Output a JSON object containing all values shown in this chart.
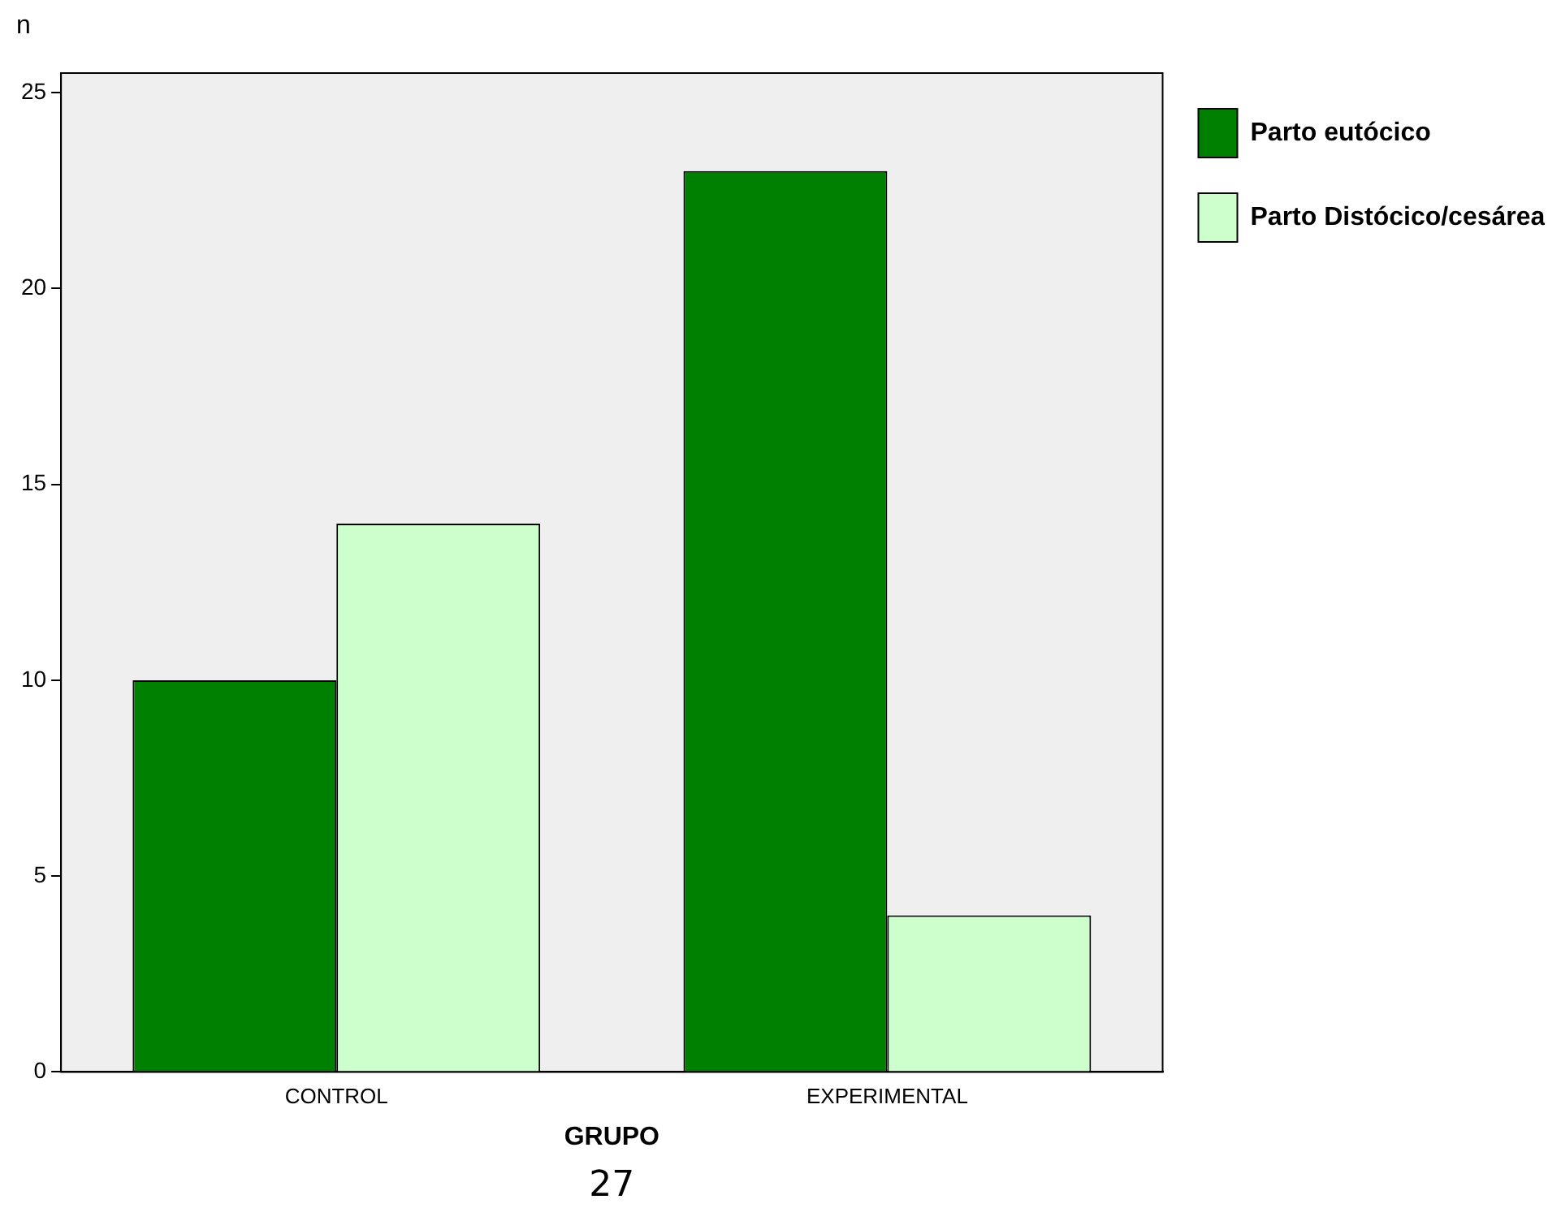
{
  "chart_data": {
    "type": "bar",
    "xlabel": "GRUPO",
    "ylabel": "n",
    "categories": [
      "CONTROL",
      "EXPERIMENTAL"
    ],
    "series": [
      {
        "name": "Parto eutócico",
        "color": "#008000",
        "values": [
          10,
          23
        ]
      },
      {
        "name": "Parto Distócico/cesárea",
        "color": "#ccffcc",
        "values": [
          14,
          4
        ]
      }
    ],
    "ylim": [
      0,
      25.5
    ],
    "yticks": [
      0,
      5,
      10,
      15,
      20,
      25
    ],
    "grid": false,
    "legend": "right",
    "annotations": [
      "27"
    ]
  }
}
